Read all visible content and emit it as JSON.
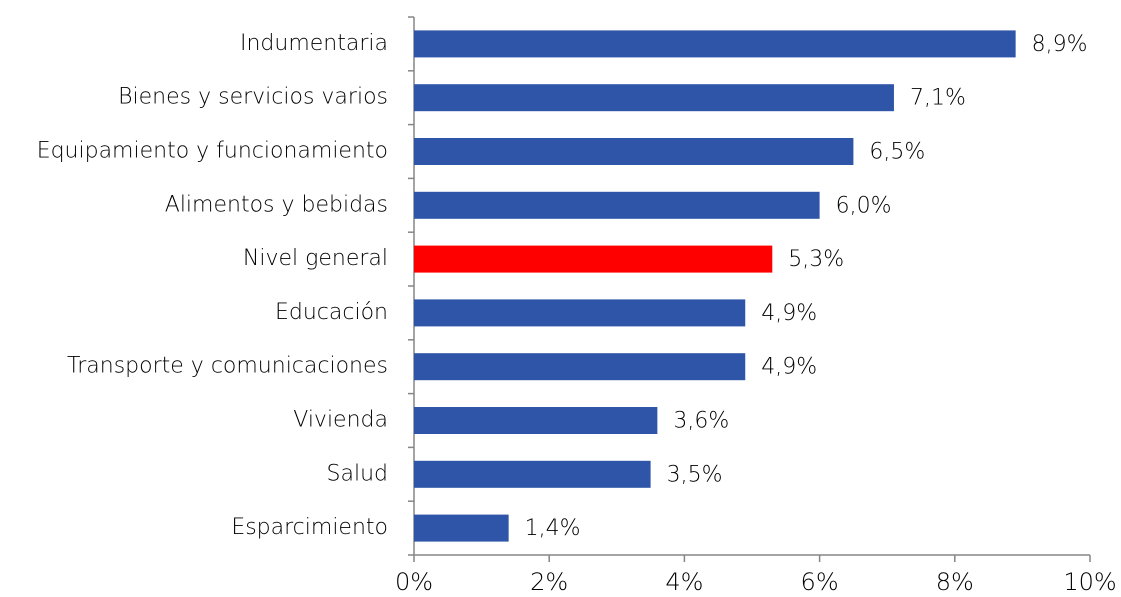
{
  "chart_data": {
    "type": "bar",
    "orientation": "horizontal",
    "categories": [
      "Indumentaria",
      "Bienes y servicios varios",
      "Equipamiento y funcionamiento",
      "Alimentos y bebidas",
      "Nivel general",
      "Educación",
      "Transporte y comunicaciones",
      "Vivienda",
      "Salud",
      "Esparcimiento"
    ],
    "values": [
      8.9,
      7.1,
      6.5,
      6.0,
      5.3,
      4.9,
      4.9,
      3.6,
      3.5,
      1.4
    ],
    "value_labels": [
      "8,9%",
      "7,1%",
      "6,5%",
      "6,0%",
      "5,3%",
      "4,9%",
      "4,9%",
      "3,6%",
      "3,5%",
      "1,4%"
    ],
    "colors": [
      "#2e55a8",
      "#2e55a8",
      "#2e55a8",
      "#2e55a8",
      "#ff0000",
      "#2e55a8",
      "#2e55a8",
      "#2e55a8",
      "#2e55a8",
      "#2e55a8"
    ],
    "xlim": [
      0,
      10
    ],
    "xticks": [
      {
        "value": 0,
        "label": "0%"
      },
      {
        "value": 2,
        "label": "2%"
      },
      {
        "value": 4,
        "label": "4%"
      },
      {
        "value": 6,
        "label": "6%"
      },
      {
        "value": 8,
        "label": "8%"
      },
      {
        "value": 10,
        "label": "10%"
      }
    ],
    "grid": false
  }
}
